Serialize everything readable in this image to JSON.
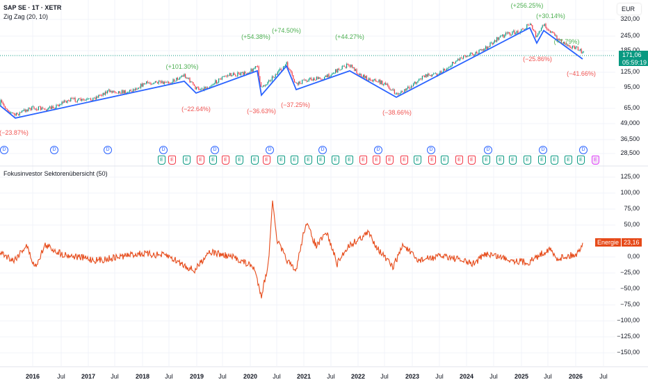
{
  "header": {
    "symbol": "SAP SE · 1T · XETR",
    "indicator1": "Zig Zag (20, 10)",
    "indicator2": "Fokusinvestor Sektorenübersicht (50)",
    "currency": "EUR"
  },
  "price_axis": [
    "320,00",
    "245,00",
    "185,00",
    "125,00",
    "95,00",
    "65,00",
    "49,000",
    "36,500",
    "28,500"
  ],
  "current_price": {
    "value": "171,06",
    "countdown": "05:59:19",
    "color": "#089981"
  },
  "osc_axis": [
    "125,00",
    "100,00",
    "75,00",
    "50,00",
    "25,00",
    "0,00",
    "−25,00",
    "−50,00",
    "−75,00",
    "−100,00",
    "−125,00",
    "−150,00"
  ],
  "osc_tag": {
    "name": "Energie",
    "value": "23,16",
    "color": "#e64a19"
  },
  "time_axis": [
    "2016",
    "Jul",
    "2017",
    "Jul",
    "2018",
    "Jul",
    "2019",
    "Jul",
    "2020",
    "Jul",
    "2021",
    "Jul",
    "2022",
    "Jul",
    "2023",
    "Jul",
    "2024",
    "Jul",
    "2025",
    "Jul",
    "2026",
    "Jul"
  ],
  "zigzag_labels": [
    {
      "text": "(−23.87%)",
      "dir": "dn"
    },
    {
      "text": "(+101.30%)",
      "dir": "up"
    },
    {
      "text": "(−22.64%)",
      "dir": "dn"
    },
    {
      "text": "(+54.38%)",
      "dir": "up"
    },
    {
      "text": "(−36.63%)",
      "dir": "dn"
    },
    {
      "text": "(+74.50%)",
      "dir": "up"
    },
    {
      "text": "(−37.25%)",
      "dir": "dn"
    },
    {
      "text": "(+44.27%)",
      "dir": "up"
    },
    {
      "text": "(−38.66%)",
      "dir": "dn"
    },
    {
      "text": "(+256.25%)",
      "dir": "up"
    },
    {
      "text": "(−25.86%)",
      "dir": "dn"
    },
    {
      "text": "(+30.14%)",
      "dir": "up"
    },
    {
      "text": "(+7.79%)",
      "dir": "up"
    },
    {
      "text": "(−41.66%)",
      "dir": "dn"
    }
  ],
  "events": {
    "dividend_label": "D",
    "earnings_label": "E",
    "earnings_colors": [
      "g",
      "r",
      "g",
      "r",
      "g",
      "r",
      "g",
      "g",
      "r",
      "g",
      "g",
      "g",
      "g",
      "g",
      "g",
      "r",
      "r",
      "r",
      "r",
      "g",
      "r",
      "g",
      "r",
      "r",
      "g",
      "g",
      "g",
      "g",
      "g",
      "g",
      "g",
      "g",
      "m"
    ]
  },
  "colors": {
    "up": "#089981",
    "down": "#f23645",
    "zigzag": "#2962ff",
    "oscillator": "#e64a19"
  }
}
